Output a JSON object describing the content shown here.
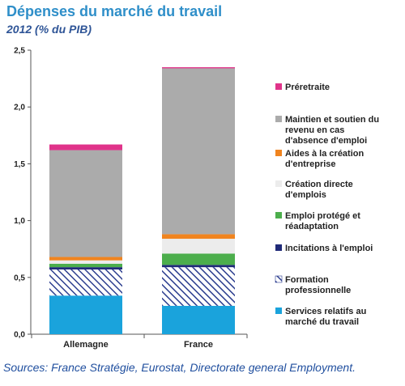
{
  "header": {
    "title": "Dépenses du marché du travail",
    "subtitle": "2012 (% du PIB)"
  },
  "footer": {
    "source": "Sources: France Stratégie, Eurostat, Directorate general Employment."
  },
  "chart_data": {
    "type": "bar",
    "stacked": true,
    "title": "Dépenses du marché du travail",
    "subtitle": "2012 (% du PIB)",
    "categories": [
      "Allemagne",
      "France"
    ],
    "ylim": [
      0,
      2.5
    ],
    "yticks": [
      "0,0",
      "0,5",
      "1,0",
      "1,5",
      "2,0",
      "2,5"
    ],
    "grid": false,
    "legend_position": "right",
    "series": [
      {
        "name": "Services relatifs au marché du travail",
        "values": [
          0.34,
          0.25
        ],
        "color": "#1aa3dc",
        "pattern": "solid"
      },
      {
        "name": "Formation professionnelle",
        "values": [
          0.23,
          0.34
        ],
        "color": "#2c3e8f",
        "pattern": "hatch"
      },
      {
        "name": "Incitations à l'emploi",
        "values": [
          0.02,
          0.02
        ],
        "color": "#1f2a78",
        "pattern": "solid"
      },
      {
        "name": "Emploi protégé et réadaptation",
        "values": [
          0.03,
          0.1
        ],
        "color": "#4cae4c",
        "pattern": "solid"
      },
      {
        "name": "Création directe d'emplois",
        "values": [
          0.03,
          0.13
        ],
        "color": "#ececec",
        "pattern": "solid"
      },
      {
        "name": "Aides à la création d'entreprise",
        "values": [
          0.03,
          0.04
        ],
        "color": "#f0841f",
        "pattern": "solid"
      },
      {
        "name": "Maintien et soutien du revenu en cas d'absence d'emploi",
        "values": [
          0.94,
          1.46
        ],
        "color": "#ababab",
        "pattern": "solid"
      },
      {
        "name": "Préretraite",
        "values": [
          0.05,
          0.01
        ],
        "color": "#e0338a",
        "pattern": "solid"
      }
    ]
  }
}
